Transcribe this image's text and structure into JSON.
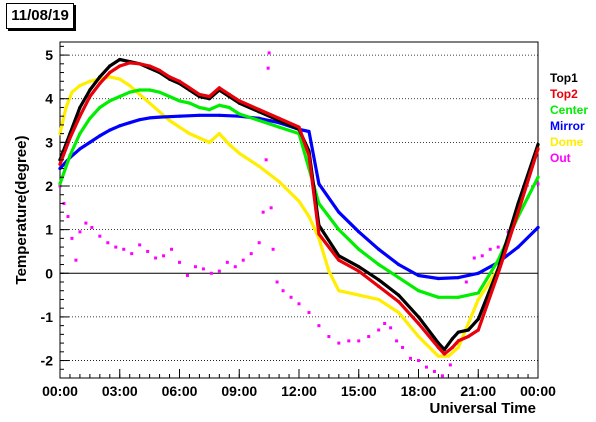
{
  "title": "11/08/19",
  "chart_data": {
    "type": "scatter",
    "xlabel": "Universal Time",
    "ylabel": "Temperature(degree)",
    "xlim": [
      0,
      24
    ],
    "ylim": [
      -2.4,
      5.3
    ],
    "grid": "horizontal dotted",
    "zero_line": true,
    "legend_placement": "right",
    "x_ticks": [
      {
        "value": 0,
        "label": "00:00"
      },
      {
        "value": 3,
        "label": "03:00"
      },
      {
        "value": 6,
        "label": "06:00"
      },
      {
        "value": 9,
        "label": "09:00"
      },
      {
        "value": 12,
        "label": "12:00"
      },
      {
        "value": 15,
        "label": "15:00"
      },
      {
        "value": 18,
        "label": "18:00"
      },
      {
        "value": 21,
        "label": "21:00"
      },
      {
        "value": 24,
        "label": "00:00"
      }
    ],
    "y_ticks": [
      {
        "value": -2,
        "label": "-2"
      },
      {
        "value": -1,
        "label": "-1"
      },
      {
        "value": 0,
        "label": "0"
      },
      {
        "value": 1,
        "label": "1"
      },
      {
        "value": 2,
        "label": "2"
      },
      {
        "value": 3,
        "label": "3"
      },
      {
        "value": 4,
        "label": "4"
      },
      {
        "value": 5,
        "label": "5"
      }
    ],
    "series": [
      {
        "name": "Top1",
        "color": "#000000",
        "style": "line",
        "x": [
          0,
          0.5,
          1,
          1.5,
          2,
          2.5,
          3,
          3.5,
          4,
          4.5,
          5,
          5.5,
          6,
          6.5,
          7,
          7.5,
          8,
          8.5,
          9,
          10,
          11,
          12,
          12.5,
          13,
          14,
          15,
          16,
          17,
          18,
          19,
          19.3,
          19.7,
          20,
          20.5,
          21,
          22,
          23,
          24
        ],
        "y": [
          2.6,
          3.2,
          3.8,
          4.2,
          4.5,
          4.75,
          4.9,
          4.85,
          4.8,
          4.7,
          4.6,
          4.45,
          4.35,
          4.2,
          4.05,
          4.0,
          4.2,
          4.05,
          3.9,
          3.7,
          3.5,
          3.3,
          2.8,
          1.1,
          0.4,
          0.15,
          -0.15,
          -0.5,
          -1.0,
          -1.6,
          -1.75,
          -1.5,
          -1.35,
          -1.3,
          -1.05,
          0.1,
          1.6,
          2.95
        ]
      },
      {
        "name": "Top2",
        "color": "#e8000b",
        "style": "line",
        "x": [
          0,
          0.5,
          1,
          1.5,
          2,
          2.5,
          3,
          3.5,
          4,
          4.5,
          5,
          5.5,
          6,
          6.5,
          7,
          7.5,
          8,
          8.5,
          9,
          10,
          11,
          12,
          12.5,
          13,
          14,
          15,
          16,
          17,
          18,
          19,
          19.3,
          19.7,
          20,
          20.5,
          21,
          22,
          23,
          24
        ],
        "y": [
          2.5,
          3.1,
          3.6,
          4.05,
          4.35,
          4.6,
          4.75,
          4.82,
          4.8,
          4.75,
          4.65,
          4.5,
          4.4,
          4.25,
          4.1,
          4.05,
          4.25,
          4.1,
          3.95,
          3.75,
          3.55,
          3.35,
          2.7,
          0.9,
          0.3,
          0.05,
          -0.3,
          -0.65,
          -1.15,
          -1.7,
          -1.85,
          -1.7,
          -1.55,
          -1.45,
          -1.3,
          0.0,
          1.4,
          2.85
        ]
      },
      {
        "name": "Center",
        "color": "#00ee00",
        "style": "line",
        "x": [
          0,
          0.5,
          1,
          1.5,
          2,
          2.5,
          3,
          3.5,
          4,
          4.5,
          5,
          5.5,
          6,
          6.5,
          7,
          7.5,
          8,
          8.5,
          9,
          10,
          11,
          12,
          12.5,
          13,
          14,
          15,
          16,
          17,
          18,
          19,
          20,
          21,
          22,
          23,
          24
        ],
        "y": [
          2.05,
          2.7,
          3.2,
          3.55,
          3.8,
          3.95,
          4.05,
          4.15,
          4.2,
          4.2,
          4.15,
          4.05,
          3.95,
          3.9,
          3.8,
          3.75,
          3.85,
          3.8,
          3.65,
          3.5,
          3.35,
          3.2,
          2.4,
          1.6,
          1.0,
          0.55,
          0.2,
          -0.1,
          -0.4,
          -0.55,
          -0.55,
          -0.45,
          0.3,
          1.3,
          2.2
        ]
      },
      {
        "name": "Mirror",
        "color": "#0000ff",
        "style": "line",
        "x": [
          0,
          0.5,
          1,
          1.5,
          2,
          2.5,
          3,
          3.5,
          4,
          4.5,
          5,
          6,
          7,
          8,
          9,
          10,
          11,
          12,
          12.5,
          13,
          14,
          15,
          16,
          17,
          18,
          19,
          20,
          21,
          22,
          23,
          24
        ],
        "y": [
          2.4,
          2.65,
          2.85,
          3.0,
          3.15,
          3.28,
          3.38,
          3.45,
          3.52,
          3.56,
          3.58,
          3.6,
          3.62,
          3.62,
          3.6,
          3.55,
          3.45,
          3.3,
          3.25,
          2.05,
          1.4,
          0.95,
          0.55,
          0.2,
          -0.05,
          -0.12,
          -0.1,
          0.0,
          0.25,
          0.6,
          1.05
        ]
      },
      {
        "name": "Dome",
        "color": "#ffee00",
        "style": "line",
        "x": [
          0,
          0.3,
          0.6,
          1,
          1.5,
          2,
          2.5,
          3,
          3.5,
          4,
          4.5,
          5,
          5.5,
          6,
          6.5,
          7,
          7.5,
          8,
          8.5,
          9,
          10,
          11,
          12,
          12.5,
          13,
          13.5,
          14,
          15,
          16,
          17,
          18,
          19,
          19.5,
          20,
          21,
          22,
          23,
          24
        ],
        "y": [
          3.2,
          3.8,
          4.15,
          4.3,
          4.4,
          4.45,
          4.5,
          4.45,
          4.3,
          4.1,
          3.9,
          3.7,
          3.5,
          3.35,
          3.2,
          3.1,
          3.0,
          3.2,
          2.95,
          2.75,
          2.45,
          2.1,
          1.65,
          1.3,
          0.8,
          0.05,
          -0.4,
          -0.5,
          -0.6,
          -0.9,
          -1.45,
          -1.9,
          -1.9,
          -1.7,
          -0.6,
          0.1,
          1.4,
          2.9
        ]
      },
      {
        "name": "Out",
        "color": "#ff00ff",
        "style": "points",
        "x": [
          0,
          0.2,
          0.4,
          0.6,
          0.8,
          1,
          1.3,
          1.6,
          2,
          2.4,
          2.8,
          3.2,
          3.6,
          4,
          4.4,
          4.8,
          5.2,
          5.6,
          6,
          6.4,
          6.8,
          7.2,
          7.6,
          8,
          8.4,
          8.8,
          9.2,
          9.6,
          10,
          10.2,
          10.35,
          10.45,
          10.5,
          10.55,
          10.6,
          10.7,
          10.9,
          11.2,
          11.6,
          12,
          12.5,
          13,
          13.5,
          14,
          14.5,
          15,
          15.5,
          16,
          16.3,
          16.6,
          16.9,
          17.2,
          17.6,
          18,
          18.4,
          18.8,
          19.2,
          19.6,
          20,
          20.4,
          20.8,
          21.2,
          21.6,
          22,
          22.5,
          23,
          23.5,
          24
        ],
        "y": [
          2.0,
          1.6,
          1.3,
          0.8,
          0.3,
          0.95,
          1.15,
          1.05,
          0.85,
          0.7,
          0.6,
          0.55,
          0.45,
          0.65,
          0.5,
          0.35,
          0.4,
          0.55,
          0.25,
          -0.05,
          0.15,
          0.1,
          0.0,
          0.05,
          0.25,
          0.15,
          0.3,
          0.45,
          0.7,
          1.4,
          2.6,
          4.7,
          5.05,
          3.5,
          1.5,
          0.55,
          -0.2,
          -0.4,
          -0.55,
          -0.7,
          -0.9,
          -1.2,
          -1.45,
          -1.6,
          -1.55,
          -1.55,
          -1.45,
          -1.3,
          -1.15,
          -1.25,
          -1.55,
          -1.7,
          -1.95,
          -2.0,
          -2.15,
          -2.25,
          -2.35,
          -2.1,
          -1.6,
          -0.2,
          0.35,
          0.4,
          0.55,
          0.6,
          0.95,
          1.35,
          1.75,
          2.05
        ]
      }
    ]
  }
}
